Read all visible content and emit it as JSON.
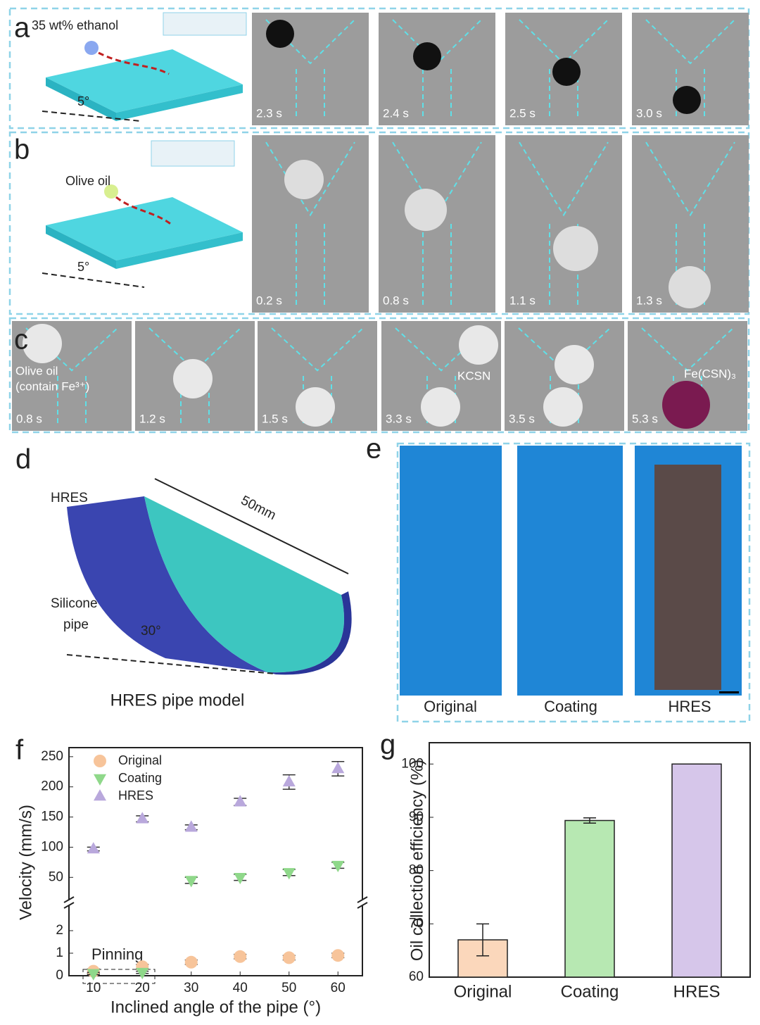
{
  "panel_labels": [
    "a",
    "b",
    "c",
    "d",
    "e",
    "f",
    "g"
  ],
  "panel_a": {
    "droplet": "35 wt% ethanol",
    "angle": "5°",
    "times": [
      "2.3 s",
      "2.4 s",
      "2.5 s",
      "3.0 s"
    ]
  },
  "panel_b": {
    "droplet": "Olive oil",
    "angle": "5°",
    "times": [
      "0.2 s",
      "0.8 s",
      "1.1 s",
      "1.3 s"
    ]
  },
  "panel_c": {
    "oil": [
      "Olive oil",
      "(contain Fe³⁺)"
    ],
    "reagent": "KCSN",
    "product": "Fe(CSN)₃",
    "times": [
      "0.8 s",
      "1.2 s",
      "1.5 s",
      "3.3 s",
      "3.5 s",
      "5.3 s"
    ]
  },
  "panel_d": {
    "surface": "HRES",
    "pipe": [
      "Silicone",
      "pipe"
    ],
    "length": "50mm",
    "angle": "30°",
    "caption": "HRES pipe model"
  },
  "panel_e": {
    "labels": [
      "Original",
      "Coating",
      "HRES"
    ]
  },
  "chart_data": [
    {
      "type": "scatter",
      "x_label": "Inclined angle of the pipe (°)",
      "y_label": "Velocity (mm/s)",
      "annotation": "Pinning",
      "x": [
        10,
        20,
        30,
        40,
        50,
        60
      ],
      "xlim": [
        5,
        65
      ],
      "xticks": [
        10,
        20,
        30,
        40,
        50,
        60
      ],
      "ylim_lower": [
        0,
        3
      ],
      "yticks_lower": [
        0,
        1,
        2
      ],
      "ylim_upper": [
        20,
        265
      ],
      "yticks_upper": [
        50,
        100,
        150,
        200,
        250
      ],
      "series": [
        {
          "name": "Original",
          "color": "#f7c49a",
          "marker": "circle",
          "values": [
            0.2,
            0.4,
            0.6,
            0.85,
            0.8,
            0.9
          ],
          "errors": [
            0.1,
            0.1,
            0.1,
            0.1,
            0.1,
            0.1
          ]
        },
        {
          "name": "Coating",
          "color": "#8fd88a",
          "marker": "triangle-down",
          "values": [
            0.1,
            0.15,
            45,
            50,
            58,
            70
          ],
          "errors": [
            0.05,
            0.05,
            5,
            5,
            5,
            5
          ]
        },
        {
          "name": "HRES",
          "color": "#b9a8dc",
          "marker": "triangle-up",
          "values": [
            97,
            147,
            133,
            175,
            208,
            230
          ],
          "errors": [
            3,
            5,
            4,
            6,
            12,
            12
          ]
        }
      ]
    },
    {
      "type": "bar",
      "y_label": "Oil collection efficiency (%)",
      "categories": [
        "Original",
        "Coating",
        "HRES"
      ],
      "values": [
        67,
        89.4,
        100
      ],
      "errors": [
        3,
        0.5,
        0
      ],
      "colors": [
        "#fbd7bb",
        "#b7e8b2",
        "#d6c6ea"
      ],
      "ylim": [
        60,
        104
      ],
      "yticks": [
        60,
        70,
        80,
        90,
        100
      ]
    }
  ]
}
